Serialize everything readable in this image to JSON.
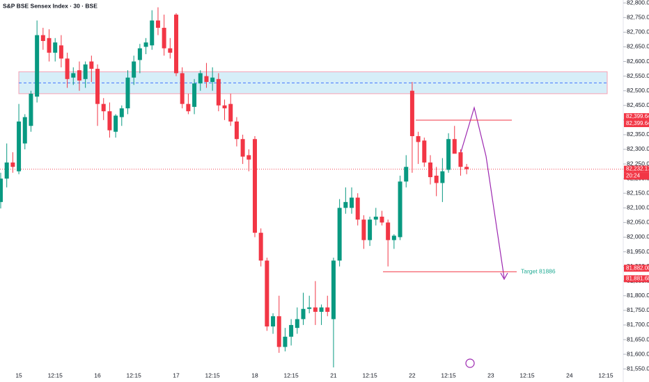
{
  "chart_data": {
    "type": "candlestick",
    "title": "S&P BSE Sensex Index · 30 · BSE",
    "categories": [
      null,
      null,
      null,
      "15",
      null,
      null,
      null,
      null,
      null,
      "12:15",
      null,
      null,
      null,
      null,
      null,
      null,
      "16",
      null,
      null,
      null,
      null,
      null,
      "12:15",
      null,
      null,
      null,
      null,
      null,
      null,
      "17",
      null,
      null,
      null,
      null,
      null,
      "12:15",
      null,
      null,
      null,
      null,
      null,
      null,
      "18",
      null,
      null,
      null,
      null,
      null,
      "12:15",
      null,
      null,
      null,
      null,
      null,
      null,
      "21",
      null,
      null,
      null,
      null,
      null,
      "12:15",
      null,
      null,
      null,
      null,
      null,
      null,
      "22",
      null,
      null,
      null,
      null,
      null,
      "12:15",
      null,
      null,
      null,
      null,
      null,
      null,
      "23",
      null,
      null,
      null,
      null,
      null,
      "12:15",
      null,
      null,
      null,
      null,
      null,
      null,
      "24",
      null,
      null,
      null,
      null,
      null,
      "12:15"
    ],
    "open": [
      82120,
      82200,
      82255,
      82225,
      82320,
      82380,
      82480,
      82690,
      82680,
      82630,
      82655,
      82610,
      82545,
      82570,
      82540,
      82600,
      82575,
      82455,
      82430,
      82360,
      82410,
      82440,
      82545,
      82605,
      82650,
      82655,
      82740,
      82715,
      82645,
      82760,
      82560,
      82455,
      82445,
      82525,
      82550,
      82530,
      82540,
      82450,
      82455,
      82395,
      82335,
      82280,
      82335,
      82015,
      81920,
      81695,
      81730,
      81625,
      81660,
      81690,
      81720,
      81755,
      81760,
      81745,
      81760,
      81720,
      81920,
      82100,
      82100,
      82135,
      82060,
      81990,
      82060,
      82070,
      82050,
      81990,
      82000,
      82190,
      82500,
      82345,
      82330,
      82255,
      82210,
      82185,
      82230,
      82335,
      82290,
      82240,
      null,
      null,
      null,
      null,
      null,
      null,
      null,
      null,
      null,
      null,
      null,
      null,
      null,
      null,
      null,
      null,
      null,
      null,
      null,
      null,
      null,
      null,
      null
    ],
    "high": [
      82220,
      82320,
      82290,
      82455,
      82420,
      82500,
      82740,
      82715,
      82710,
      82680,
      82690,
      82630,
      82580,
      82600,
      82600,
      82620,
      82590,
      82475,
      82460,
      82420,
      82450,
      82570,
      82620,
      82660,
      82680,
      82775,
      82785,
      82760,
      82680,
      82765,
      82580,
      82490,
      82540,
      82570,
      82595,
      82580,
      82560,
      82470,
      82490,
      82410,
      82350,
      82300,
      82345,
      82030,
      81930,
      81740,
      81800,
      81690,
      81720,
      81760,
      81810,
      81800,
      81850,
      81770,
      81800,
      81930,
      82130,
      82170,
      82170,
      82150,
      82075,
      82070,
      82100,
      82090,
      82060,
      82010,
      82210,
      82280,
      82530,
      82360,
      82340,
      82280,
      82240,
      82270,
      82355,
      82380,
      82300,
      82250,
      null,
      null,
      null,
      null,
      null,
      null,
      null,
      null,
      null,
      null,
      null,
      null,
      null,
      null,
      null,
      null,
      null,
      null,
      null,
      null,
      null,
      null,
      null
    ],
    "low": [
      82098,
      82170,
      82220,
      82215,
      82300,
      82360,
      82460,
      82640,
      82600,
      82600,
      82580,
      82510,
      82520,
      82500,
      82510,
      82530,
      82380,
      82400,
      82340,
      82340,
      82380,
      82420,
      82520,
      82560,
      82625,
      82640,
      82690,
      82620,
      82610,
      82550,
      82440,
      82420,
      82420,
      82500,
      82510,
      82500,
      82430,
      82400,
      82380,
      82310,
      82250,
      82225,
      82000,
      81900,
      81680,
      81670,
      81605,
      81610,
      81630,
      81670,
      81700,
      81740,
      81700,
      81700,
      81730,
      81555,
      81900,
      82080,
      82080,
      82040,
      81960,
      81970,
      82040,
      82040,
      81900,
      81960,
      81990,
      82170,
      82220,
      82250,
      82240,
      82180,
      82140,
      82120,
      82220,
      82290,
      82210,
      82215,
      null,
      null,
      null,
      null,
      null,
      null,
      null,
      null,
      null,
      null,
      null,
      null,
      null,
      null,
      null,
      null,
      null,
      null,
      null,
      null,
      null,
      null,
      null
    ],
    "close": [
      82200,
      82255,
      82240,
      82395,
      82410,
      82490,
      82690,
      82670,
      82630,
      82665,
      82610,
      82540,
      82560,
      82535,
      82590,
      82575,
      82455,
      82430,
      82365,
      82415,
      82440,
      82545,
      82600,
      82645,
      82665,
      82740,
      82715,
      82645,
      82630,
      82560,
      82455,
      82430,
      82525,
      82560,
      82530,
      82545,
      82450,
      82440,
      82395,
      82335,
      82275,
      82265,
      82015,
      81920,
      81695,
      81730,
      81625,
      81660,
      81700,
      81720,
      81755,
      81760,
      81745,
      81760,
      81745,
      81920,
      82100,
      82120,
      82135,
      82060,
      81990,
      82060,
      82070,
      82050,
      81990,
      82005,
      82190,
      82240,
      82345,
      82325,
      82255,
      82205,
      82185,
      82225,
      82335,
      82285,
      82240,
      82232.17,
      null,
      null,
      null,
      null,
      null,
      null,
      null,
      null,
      null,
      null,
      null,
      null,
      null,
      null,
      null,
      null,
      null,
      null,
      null,
      null,
      null,
      null,
      null
    ],
    "up_color": "#089981",
    "down_color": "#f23645",
    "ylim": [
      81548,
      82810
    ],
    "yticks": [
      {
        "value": 82800,
        "label": "82,800.00"
      },
      {
        "value": 82750,
        "label": "82,750.00"
      },
      {
        "value": 82700,
        "label": "82,700.00"
      },
      {
        "value": 82650,
        "label": "82,650.00"
      },
      {
        "value": 82600,
        "label": "82,600.00"
      },
      {
        "value": 82550,
        "label": "82,550.00"
      },
      {
        "value": 82500,
        "label": "82,500.00"
      },
      {
        "value": 82450,
        "label": "82,450.00"
      },
      {
        "value": 82400,
        "label": "82,400.00"
      },
      {
        "value": 82350,
        "label": "82,350.00"
      },
      {
        "value": 82300,
        "label": "82,300.00"
      },
      {
        "value": 82250,
        "label": "82,250.00"
      },
      {
        "value": 82200,
        "label": "82,200.00"
      },
      {
        "value": 82150,
        "label": "82,150.00"
      },
      {
        "value": 82100,
        "label": "82,100.00"
      },
      {
        "value": 82050,
        "label": "82,050.00"
      },
      {
        "value": 82000,
        "label": "82,000.00"
      },
      {
        "value": 81950,
        "label": "81,950.00"
      },
      {
        "value": 81900,
        "label": "81,900.00"
      },
      {
        "value": 81850,
        "label": "81,850.00"
      },
      {
        "value": 81800,
        "label": "81,800.00"
      },
      {
        "value": 81750,
        "label": "81,750.00"
      },
      {
        "value": 81700,
        "label": "81,700.00"
      },
      {
        "value": 81650,
        "label": "81,650.00"
      },
      {
        "value": 81600,
        "label": "81,600.00"
      },
      {
        "value": 81550,
        "label": "81,550.00"
      }
    ],
    "zone": [
      82490,
      82565
    ],
    "zone_mid": 82527,
    "axis_labels": [
      {
        "value": 82399.64,
        "label": "82,399.64"
      },
      {
        "value": 82399.64,
        "label": "82,399.64"
      },
      {
        "value": 82232.17,
        "label": "82,232.17"
      },
      {
        "value": 81882,
        "label": "81,882.00"
      },
      {
        "value": 81881.68,
        "label": "81,881.68"
      }
    ],
    "countdown": "20:24",
    "target_label": "Target 81886"
  }
}
